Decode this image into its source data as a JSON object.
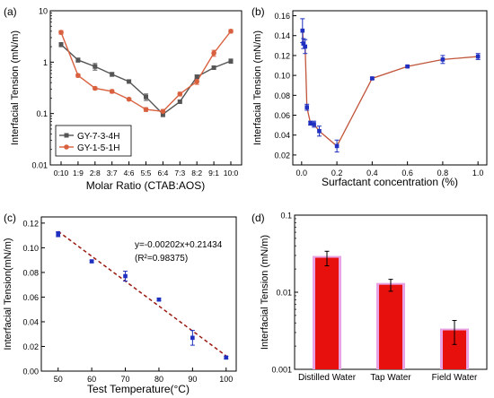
{
  "chart_data": [
    {
      "panel_label": "(a)",
      "type": "line",
      "ylabel": "Interfacial Tension (mN/m)",
      "xlabel": "Molar Ratio (CTAB:AOS)",
      "categories": [
        "0:10",
        "1:9",
        "2:8",
        "3:7",
        "4:6",
        "5:5",
        "6:4",
        "7:3",
        "8:2",
        "9:1",
        "10:0"
      ],
      "y_scale": "log",
      "ylim": [
        0.01,
        10
      ],
      "yticks": [
        0.01,
        0.1,
        1,
        10
      ],
      "ytick_labels": [
        "0.01",
        "0.1",
        "1",
        "10"
      ],
      "legend_placement": "lower-left",
      "series": [
        {
          "name": "GY-7-3-4H",
          "color": "#555555",
          "values": [
            2.2,
            1.1,
            0.82,
            0.58,
            0.42,
            0.21,
            0.097,
            0.17,
            0.52,
            0.78,
            1.05
          ],
          "errors": [
            0.2,
            0.1,
            0.12,
            0.05,
            0.03,
            0.03,
            0.01,
            0.01,
            0.04,
            0.06,
            0.1
          ]
        },
        {
          "name": "GY-1-5-1H",
          "color": "#d9603e",
          "values": [
            3.8,
            0.55,
            0.31,
            0.27,
            0.19,
            0.12,
            0.11,
            0.24,
            0.42,
            1.5,
            4.0
          ],
          "errors": [
            0.3,
            0.04,
            0.02,
            0.02,
            0.01,
            0.01,
            0.01,
            0.02,
            0.05,
            0.2,
            0.3
          ]
        }
      ]
    },
    {
      "panel_label": "(b)",
      "type": "line",
      "ylabel": "Interfacial Tension (mN/m)",
      "xlabel": "Surfactant concentration (%)",
      "xlim": [
        -0.05,
        1.05
      ],
      "ylim": [
        0.01,
        0.165
      ],
      "xticks": [
        0.0,
        0.2,
        0.4,
        0.6,
        0.8,
        1.0
      ],
      "xtick_labels": [
        "0.0",
        "0.2",
        "0.4",
        "0.6",
        "0.8",
        "1.0"
      ],
      "yticks": [
        0.02,
        0.04,
        0.06,
        0.08,
        0.1,
        0.12,
        0.14,
        0.16
      ],
      "ytick_labels": [
        "0.02",
        "0.04",
        "0.06",
        "0.08",
        "0.10",
        "0.12",
        "0.14",
        "0.16"
      ],
      "series": [
        {
          "name": "",
          "color": "#c0553a",
          "marker_color": "#1f2fbf",
          "x": [
            0.005,
            0.01,
            0.02,
            0.03,
            0.05,
            0.07,
            0.1,
            0.2,
            0.4,
            0.6,
            0.8,
            1.0
          ],
          "values": [
            0.145,
            0.132,
            0.129,
            0.068,
            0.052,
            0.051,
            0.044,
            0.029,
            0.097,
            0.109,
            0.116,
            0.119
          ],
          "errors": [
            0.012,
            0.005,
            0.007,
            0.003,
            0.002,
            0.003,
            0.005,
            0.006,
            0.001,
            0.001,
            0.004,
            0.003
          ]
        }
      ]
    },
    {
      "panel_label": "(c)",
      "type": "scatter",
      "ylabel": "Interfacial Tension(mN/m)",
      "xlabel": "Test Temperature(°C)",
      "xlim": [
        45,
        103
      ],
      "ylim": [
        0,
        0.125
      ],
      "xticks": [
        50,
        60,
        70,
        80,
        90,
        100
      ],
      "xtick_labels": [
        "50",
        "60",
        "70",
        "80",
        "90",
        "100"
      ],
      "yticks": [
        0,
        0.02,
        0.04,
        0.06,
        0.08,
        0.1,
        0.12
      ],
      "ytick_labels": [
        "0.00",
        "0.02",
        "0.04",
        "0.06",
        "0.08",
        "0.10",
        "0.12"
      ],
      "annotation_lines": [
        "y=-0.00202x+0.21434",
        "(R²=0.98375)"
      ],
      "fit": {
        "slope": -0.00202,
        "intercept": 0.21434,
        "x_from": 50,
        "x_to": 100,
        "color": "#9a1a10"
      },
      "series": [
        {
          "name": "",
          "color": "#1f2fbf",
          "x": [
            50,
            60,
            70,
            80,
            90,
            100
          ],
          "values": [
            0.111,
            0.089,
            0.077,
            0.058,
            0.027,
            0.011
          ],
          "errors": [
            0.002,
            0.001,
            0.004,
            0.001,
            0.006,
            0.001
          ]
        }
      ]
    },
    {
      "panel_label": "(d)",
      "type": "bar",
      "ylabel": "Interfacial Tension (mN/m)",
      "xlabel": "",
      "categories": [
        "Distilled Water",
        "Tap Water",
        "Field Water"
      ],
      "y_scale": "log",
      "ylim": [
        0.001,
        0.1
      ],
      "yticks": [
        0.001,
        0.01,
        0.1
      ],
      "ytick_labels": [
        "0.001",
        "0.01",
        "0.1"
      ],
      "bar_color": "#e8100c",
      "bar_glow": "#e7a3e4",
      "series": [
        {
          "name": "",
          "values": [
            0.028,
            0.0125,
            0.0032
          ],
          "errors": [
            0.006,
            0.0022,
            0.0011
          ]
        }
      ]
    }
  ]
}
